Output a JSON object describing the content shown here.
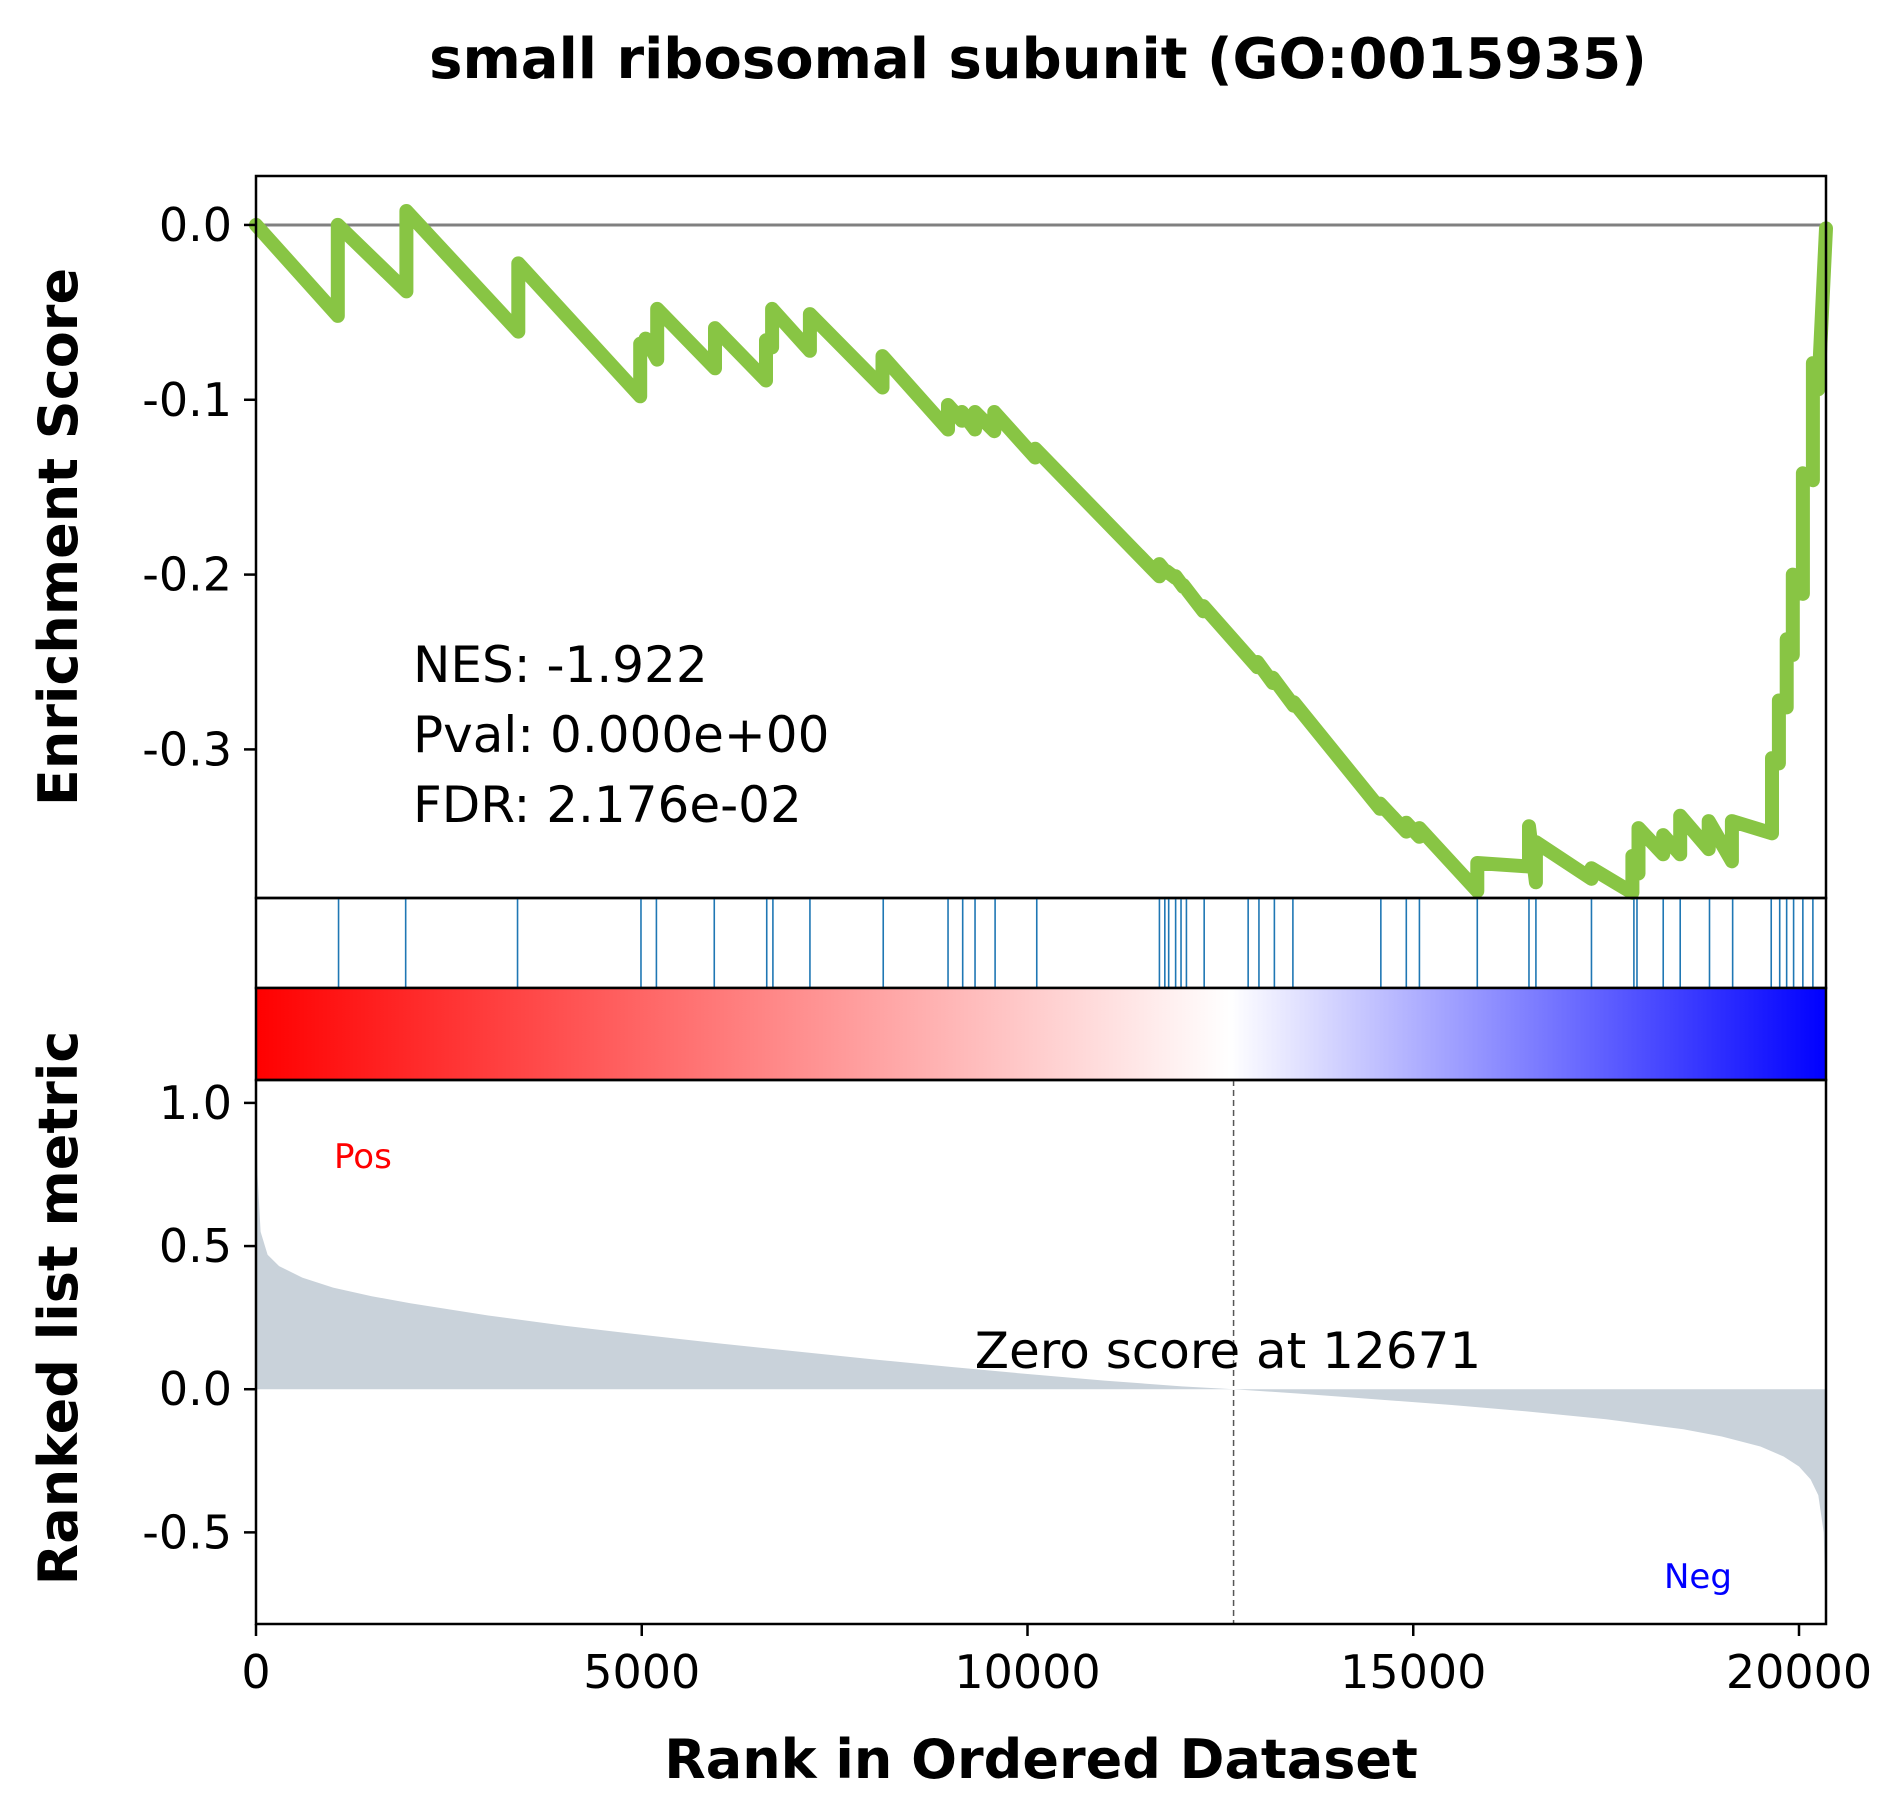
{
  "chart_data": {
    "type": "line",
    "title": "small ribosomal subunit (GO:0015935)",
    "xlabel": "Rank in Ordered Dataset",
    "xlim": [
      0,
      20350
    ],
    "x_ticks": [
      {
        "value": 0,
        "label": "0"
      },
      {
        "value": 5000,
        "label": "5000"
      },
      {
        "value": 10000,
        "label": "10000"
      },
      {
        "value": 15000,
        "label": "15000"
      },
      {
        "value": 20000,
        "label": "20000"
      }
    ],
    "es_panel": {
      "ylabel": "Enrichment Score",
      "ylim": [
        -0.385,
        0.028
      ],
      "y_ticks": [
        {
          "value": 0.0,
          "label": "0.0"
        },
        {
          "value": -0.1,
          "label": "-0.1"
        },
        {
          "value": -0.2,
          "label": "-0.2"
        },
        {
          "value": -0.3,
          "label": "-0.3"
        }
      ],
      "line_color": "#88c544",
      "baseline": 0.0,
      "curve": {
        "x": [
          0,
          1060,
          1060,
          1950,
          1950,
          3400,
          3400,
          4980,
          4980,
          5050,
          5050,
          5200,
          5200,
          5950,
          5950,
          6610,
          6610,
          6690,
          6690,
          7180,
          7180,
          8120,
          8120,
          8970,
          8970,
          9150,
          9150,
          9320,
          9320,
          9570,
          9570,
          10100,
          10100,
          11710,
          11710,
          11800,
          11800,
          11920,
          11920,
          12020,
          12020,
          12280,
          12280,
          12980,
          12980,
          13180,
          13180,
          13450,
          13450,
          14570,
          14570,
          14910,
          14910,
          15080,
          15080,
          15830,
          15830,
          16500,
          16500,
          16590,
          16590,
          17310,
          17310,
          17840,
          17840,
          17920,
          17920,
          18240,
          18240,
          18460,
          18460,
          18830,
          18830,
          19130,
          19130,
          19650,
          19650,
          19740,
          19740,
          19840,
          19840,
          19920,
          19920,
          20050,
          20050,
          20180,
          20180,
          20250,
          20350
        ],
        "y": [
          0.0,
          -0.052,
          0.0,
          -0.038,
          0.008,
          -0.061,
          -0.022,
          -0.098,
          -0.068,
          -0.071,
          -0.065,
          -0.077,
          -0.048,
          -0.082,
          -0.059,
          -0.089,
          -0.066,
          -0.07,
          -0.048,
          -0.072,
          -0.051,
          -0.093,
          -0.075,
          -0.117,
          -0.103,
          -0.112,
          -0.107,
          -0.117,
          -0.107,
          -0.118,
          -0.107,
          -0.133,
          -0.128,
          -0.201,
          -0.194,
          -0.199,
          -0.198,
          -0.202,
          -0.201,
          -0.207,
          -0.206,
          -0.221,
          -0.218,
          -0.253,
          -0.25,
          -0.262,
          -0.259,
          -0.275,
          -0.273,
          -0.334,
          -0.331,
          -0.347,
          -0.342,
          -0.35,
          -0.345,
          -0.381,
          -0.365,
          -0.367,
          -0.344,
          -0.376,
          -0.353,
          -0.374,
          -0.368,
          -0.382,
          -0.361,
          -0.371,
          -0.345,
          -0.36,
          -0.349,
          -0.36,
          -0.338,
          -0.357,
          -0.341,
          -0.364,
          -0.341,
          -0.348,
          -0.305,
          -0.308,
          -0.272,
          -0.276,
          -0.237,
          -0.246,
          -0.2,
          -0.211,
          -0.142,
          -0.146,
          -0.079,
          -0.094,
          -0.002
        ]
      },
      "annotations": {
        "nes": "NES: -1.922",
        "pval": "Pval: 0.000e+00",
        "fdr": "FDR: 2.176e-02"
      }
    },
    "hits": [
      1070,
      1940,
      3390,
      4990,
      5190,
      5940,
      6620,
      6700,
      7180,
      8130,
      8970,
      9160,
      9320,
      9580,
      10120,
      11710,
      11780,
      11830,
      11920,
      11990,
      12060,
      12290,
      12860,
      13000,
      13200,
      13440,
      14580,
      14910,
      15080,
      15830,
      16500,
      16590,
      17310,
      17860,
      17900,
      18240,
      18460,
      18840,
      19140,
      19640,
      19750,
      19840,
      19930,
      20050,
      20180
    ],
    "hit_color": "#1f77b4",
    "colorbar": {
      "from": "#ff0000",
      "mid": "#ffffff",
      "to": "#0000ff",
      "mid_fraction": 0.62
    },
    "metric_panel": {
      "ylabel": "Ranked list metric",
      "ylim": [
        -0.82,
        1.08
      ],
      "y_ticks": [
        {
          "value": 1.0,
          "label": "1.0"
        },
        {
          "value": 0.5,
          "label": "0.5"
        },
        {
          "value": 0.0,
          "label": "0.0"
        },
        {
          "value": -0.5,
          "label": "-0.5"
        }
      ],
      "fill_color": "#c9d2da",
      "curve": {
        "x": [
          0,
          20,
          60,
          150,
          300,
          600,
          1000,
          1500,
          2000,
          3000,
          4000,
          5000,
          6000,
          7000,
          8000,
          9000,
          10000,
          11000,
          12000,
          12671,
          13500,
          14500,
          15500,
          16500,
          17500,
          18500,
          19000,
          19500,
          19800,
          20000,
          20150,
          20250,
          20320,
          20350
        ],
        "y": [
          1.0,
          0.75,
          0.55,
          0.47,
          0.43,
          0.39,
          0.355,
          0.325,
          0.3,
          0.258,
          0.222,
          0.19,
          0.16,
          0.132,
          0.104,
          0.078,
          0.053,
          0.03,
          0.01,
          0.0,
          -0.015,
          -0.035,
          -0.055,
          -0.078,
          -0.105,
          -0.14,
          -0.165,
          -0.2,
          -0.235,
          -0.27,
          -0.315,
          -0.37,
          -0.5,
          -0.82
        ]
      },
      "zero_score_rank": 12671,
      "zero_score_label": "Zero score at 12671",
      "pos_label": "Pos",
      "neg_label": "Neg",
      "pos_color": "#ff0000",
      "neg_color": "#0000ff"
    }
  }
}
